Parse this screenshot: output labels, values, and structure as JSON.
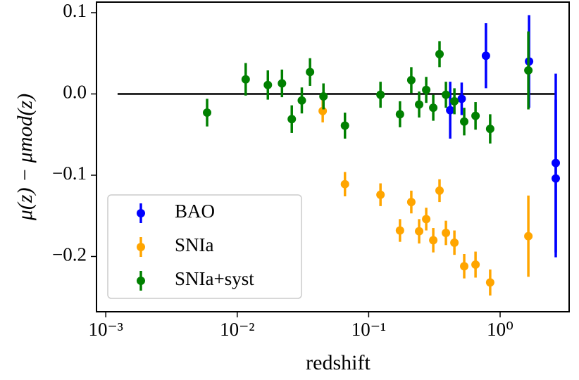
{
  "chart_data": {
    "type": "errorbar-scatter",
    "xlabel": "redshift",
    "ylabel": "μ(z) − μmod(z)",
    "xscale": "log",
    "xlim": [
      0.00085,
      3.35
    ],
    "ylim": [
      -0.268,
      0.113
    ],
    "xticks": [
      {
        "value": 0.001,
        "label": "10⁻³"
      },
      {
        "value": 0.01,
        "label": "10⁻²"
      },
      {
        "value": 0.1,
        "label": "10⁻¹"
      },
      {
        "value": 1,
        "label": "10⁰"
      }
    ],
    "yticks": [
      {
        "value": -0.2,
        "label": "−0.2"
      },
      {
        "value": -0.1,
        "label": "−0.1"
      },
      {
        "value": 0,
        "label": "0.0"
      },
      0.1
    ],
    "hline": {
      "y": 0,
      "x": [
        0.00123,
        2.62
      ],
      "color": "#000000"
    },
    "legend": "lower left",
    "series": [
      {
        "name": "BAO",
        "color": "#0000ff",
        "x": [
          0.417,
          0.51,
          0.78,
          1.66,
          2.65,
          2.65
        ],
        "values": [
          -0.02,
          -0.006,
          0.047,
          0.04,
          -0.085,
          -0.104
        ],
        "errors": [
          0.035,
          0.02,
          0.04,
          0.057,
          0.11,
          0.097
        ]
      },
      {
        "name": "SNIa",
        "color": "#ffa500",
        "x": [
          0.0447,
          0.066,
          0.123,
          0.173,
          0.211,
          0.242,
          0.274,
          0.31,
          0.346,
          0.387,
          0.449,
          0.533,
          0.65,
          0.84,
          1.64
        ],
        "values": [
          -0.021,
          -0.111,
          -0.124,
          -0.168,
          -0.133,
          -0.169,
          -0.154,
          -0.18,
          -0.119,
          -0.171,
          -0.183,
          -0.212,
          -0.21,
          -0.232,
          -0.175
        ],
        "errors": [
          0.014,
          0.015,
          0.014,
          0.014,
          0.014,
          0.015,
          0.014,
          0.015,
          0.014,
          0.015,
          0.015,
          0.015,
          0.016,
          0.016,
          0.05
        ]
      },
      {
        "name": "SNIa+syst",
        "color": "#008000",
        "x": [
          0.0059,
          0.0116,
          0.0171,
          0.0219,
          0.026,
          0.031,
          0.0358,
          0.0453,
          0.066,
          0.123,
          0.173,
          0.211,
          0.242,
          0.274,
          0.31,
          0.346,
          0.387,
          0.449,
          0.533,
          0.65,
          0.84,
          1.64
        ],
        "values": [
          -0.023,
          0.018,
          0.011,
          0.013,
          -0.031,
          -0.008,
          0.027,
          -0.003,
          -0.039,
          -0.001,
          -0.025,
          0.017,
          -0.013,
          0.005,
          -0.017,
          0.049,
          -0.001,
          -0.009,
          -0.034,
          -0.027,
          -0.043,
          0.029
        ],
        "errors": [
          0.017,
          0.02,
          0.018,
          0.017,
          0.017,
          0.016,
          0.017,
          0.016,
          0.016,
          0.016,
          0.016,
          0.016,
          0.016,
          0.016,
          0.016,
          0.016,
          0.016,
          0.016,
          0.017,
          0.017,
          0.018,
          0.048
        ]
      }
    ]
  }
}
